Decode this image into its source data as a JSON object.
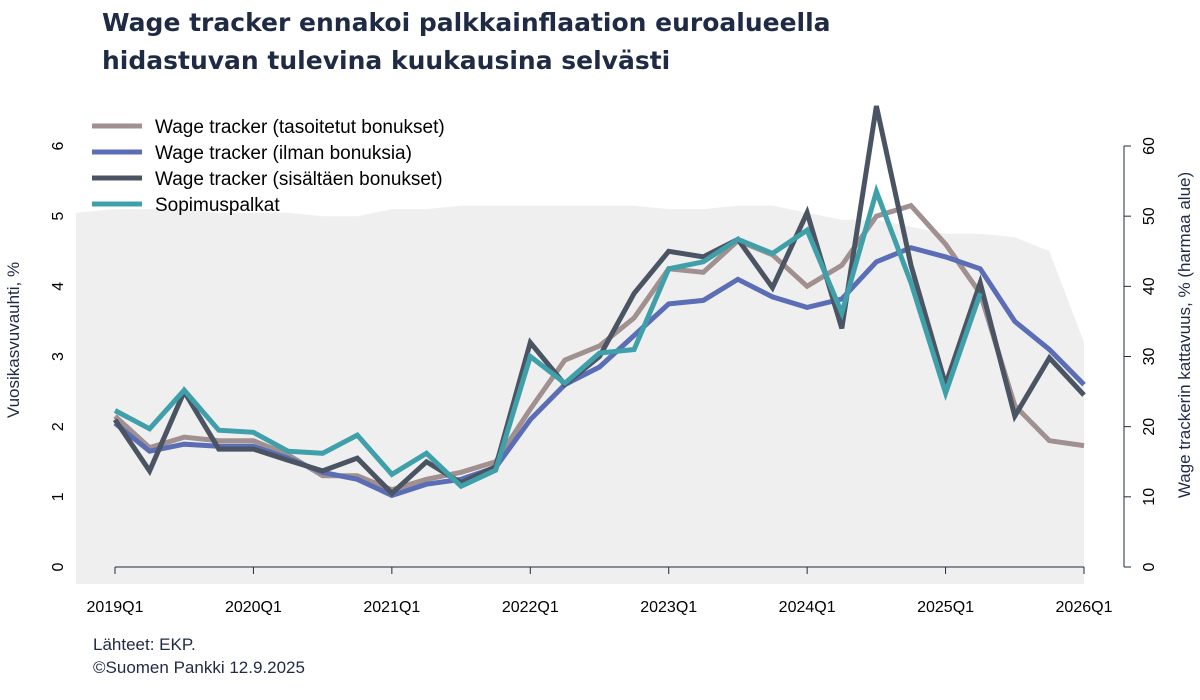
{
  "title_lines": [
    "Wage tracker ennakoi palkkainflaation euroalueella",
    "hidastuvan tulevina kuukausina selvästi"
  ],
  "footer": {
    "source": "Lähteet: EKP.",
    "copyright": "©Suomen Pankki 12.9.2025"
  },
  "colors": {
    "title": "#1f2a44",
    "axis": "#1f2a44",
    "area": "#efefef",
    "tasoitetut": "#a09090",
    "ilman": "#5b6db5",
    "sisaltaen": "#4a5462",
    "sopimus": "#3fa0aa"
  },
  "chart_data": {
    "type": "line",
    "x": [
      "2019Q1",
      "2019Q2",
      "2019Q3",
      "2019Q4",
      "2020Q1",
      "2020Q2",
      "2020Q3",
      "2020Q4",
      "2021Q1",
      "2021Q2",
      "2021Q3",
      "2021Q4",
      "2022Q1",
      "2022Q2",
      "2022Q3",
      "2022Q4",
      "2023Q1",
      "2023Q2",
      "2023Q3",
      "2023Q4",
      "2024Q1",
      "2024Q2",
      "2024Q3",
      "2024Q4",
      "2025Q1",
      "2025Q2",
      "2025Q3",
      "2025Q4",
      "2026Q1"
    ],
    "xticks": [
      "2019Q1",
      "2020Q1",
      "2021Q1",
      "2022Q1",
      "2023Q1",
      "2024Q1",
      "2025Q1",
      "2026Q1"
    ],
    "ylabel_left": "Vuosikasvuvauhti, %",
    "ylabel_right": "Wage trackerin kattavuus, % (harmaa alue)",
    "ylim_left": [
      0,
      6
    ],
    "yticks_left": [
      "0",
      "1",
      "2",
      "3",
      "4",
      "5",
      "6"
    ],
    "ylim_right": [
      0,
      60
    ],
    "yticks_right": [
      "0",
      "10",
      "20",
      "30",
      "40",
      "50",
      "60"
    ],
    "legend_position": "top-left",
    "area": {
      "name": "Wage trackerin kattavuus",
      "axis": "right",
      "x": [
        "2018Q4",
        "2019Q1",
        "2019Q2",
        "2019Q3",
        "2019Q4",
        "2020Q1",
        "2020Q2",
        "2020Q3",
        "2020Q4",
        "2021Q1",
        "2021Q2",
        "2021Q3",
        "2021Q4",
        "2022Q1",
        "2022Q2",
        "2022Q3",
        "2022Q4",
        "2023Q1",
        "2023Q2",
        "2023Q3",
        "2023Q4",
        "2024Q1",
        "2024Q2",
        "2024Q3",
        "2024Q4",
        "2025Q1",
        "2025Q2",
        "2025Q3",
        "2025Q4",
        "2026Q1"
      ],
      "values": [
        50.5,
        51,
        51,
        51,
        50.5,
        50.5,
        50.5,
        50,
        50,
        51,
        51,
        51.5,
        51.5,
        51.5,
        51.5,
        51.5,
        51.5,
        51,
        51,
        51.5,
        51.5,
        50.5,
        49.5,
        49.5,
        48.5,
        47.5,
        47.5,
        47,
        45,
        32
      ]
    },
    "series": [
      {
        "name": "Wage tracker (tasoitetut bonukset)",
        "color_key": "tasoitetut",
        "values": [
          2.15,
          1.7,
          1.85,
          1.8,
          1.8,
          1.6,
          1.3,
          1.3,
          1.1,
          1.25,
          1.35,
          1.5,
          2.25,
          2.95,
          3.15,
          3.55,
          4.25,
          4.2,
          4.65,
          4.45,
          4.0,
          4.3,
          5.0,
          5.15,
          4.6,
          3.9,
          2.3,
          1.8,
          1.73
        ]
      },
      {
        "name": "Wage tracker (ilman bonuksia)",
        "color_key": "ilman",
        "values": [
          2.05,
          1.65,
          1.75,
          1.72,
          1.72,
          1.55,
          1.35,
          1.25,
          1.02,
          1.18,
          1.25,
          1.42,
          2.1,
          2.6,
          2.85,
          3.3,
          3.75,
          3.8,
          4.1,
          3.85,
          3.7,
          3.82,
          4.35,
          4.55,
          4.42,
          4.25,
          3.5,
          3.1,
          2.6
        ]
      },
      {
        "name": "Wage tracker (sisältäen bonukset)",
        "color_key": "sisaltaen",
        "values": [
          2.1,
          1.37,
          2.5,
          1.68,
          1.68,
          1.52,
          1.37,
          1.55,
          1.05,
          1.5,
          1.2,
          1.43,
          3.2,
          2.6,
          3.0,
          3.9,
          4.5,
          4.42,
          4.67,
          3.98,
          5.05,
          3.4,
          6.57,
          4.3,
          2.6,
          4.05,
          2.15,
          2.98,
          2.45
        ]
      },
      {
        "name": "Sopimuspalkat",
        "color_key": "sopimus",
        "values": [
          2.23,
          1.97,
          2.52,
          1.95,
          1.92,
          1.65,
          1.62,
          1.88,
          1.32,
          1.62,
          1.15,
          1.38,
          3.0,
          2.62,
          3.05,
          3.1,
          4.25,
          4.35,
          4.67,
          4.47,
          4.8,
          3.62,
          5.35,
          4.05,
          2.48,
          3.9,
          null,
          null,
          null
        ]
      }
    ]
  }
}
